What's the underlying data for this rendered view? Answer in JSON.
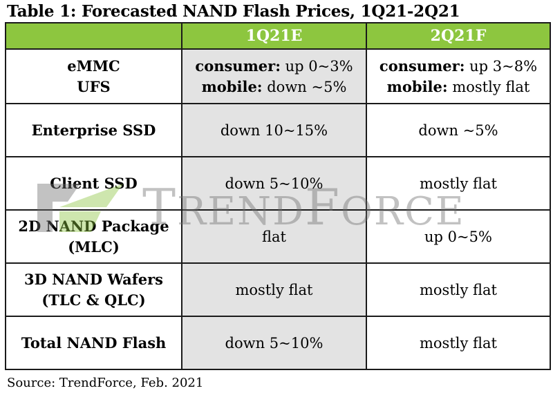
{
  "title": "Table 1: Forecasted NAND Flash Prices, 1Q21-2Q21",
  "columns": [
    "",
    "1Q21E",
    "2Q21F"
  ],
  "rows": [
    {
      "label": [
        "eMMC",
        "UFS"
      ],
      "q1": [
        {
          "k": "consumer:",
          "v": " up 0~3%"
        },
        {
          "k": "mobile:",
          "v": " down ~5%"
        }
      ],
      "q2": [
        {
          "k": "consumer:",
          "v": " up 3~8%"
        },
        {
          "k": "mobile:",
          "v": " mostly flat"
        }
      ]
    },
    {
      "label": [
        "Enterprise SSD"
      ],
      "q1": [
        {
          "k": "",
          "v": "down 10~15%"
        }
      ],
      "q2": [
        {
          "k": "",
          "v": "down ~5%"
        }
      ]
    },
    {
      "label": [
        "Client SSD"
      ],
      "q1": [
        {
          "k": "",
          "v": "down 5~10%"
        }
      ],
      "q2": [
        {
          "k": "",
          "v": "mostly flat"
        }
      ]
    },
    {
      "label": [
        "2D NAND Package",
        "(MLC)"
      ],
      "q1": [
        {
          "k": "",
          "v": "flat"
        }
      ],
      "q2": [
        {
          "k": "",
          "v": "up 0~5%"
        }
      ]
    },
    {
      "label": [
        "3D NAND Wafers",
        "(TLC & QLC)"
      ],
      "q1": [
        {
          "k": "",
          "v": "mostly flat"
        }
      ],
      "q2": [
        {
          "k": "",
          "v": "mostly flat"
        }
      ]
    },
    {
      "label": [
        "Total NAND Flash"
      ],
      "q1": [
        {
          "k": "",
          "v": "down 5~10%"
        }
      ],
      "q2": [
        {
          "k": "",
          "v": "mostly flat"
        }
      ]
    }
  ],
  "watermark": "TrendForce",
  "source": "Source: TrendForce, Feb. 2021",
  "colors": {
    "header_bg": "#8dc63f",
    "shaded_col": "#e3e3e3"
  }
}
